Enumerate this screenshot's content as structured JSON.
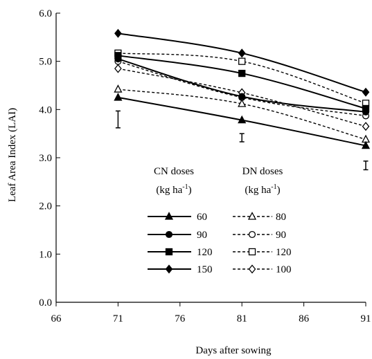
{
  "chart_data": {
    "type": "line",
    "xlabel": "Days after sowing",
    "ylabel": "Leaf Area Index (LAI)",
    "xlim": [
      66,
      91
    ],
    "ylim": [
      0,
      6
    ],
    "xticks": [
      66,
      71,
      76,
      81,
      86,
      91
    ],
    "yticks": [
      "0.0",
      "1.0",
      "2.0",
      "3.0",
      "4.0",
      "5.0",
      "6.0"
    ],
    "grid": false,
    "legend": {
      "placement": "center",
      "cn_title_line1": "CN doses",
      "cn_title_line2": "(kg ha",
      "dn_title_line1": "DN doses",
      "dn_title_line2": "(kg ha",
      "unit_sup": "-1",
      "unit_close": ")"
    },
    "series": [
      {
        "name": "60",
        "group": "CN",
        "marker": "triangle",
        "filled": true,
        "dashed": false,
        "x": [
          71,
          81,
          91
        ],
        "y": [
          4.25,
          3.78,
          3.25
        ]
      },
      {
        "name": "90",
        "group": "CN",
        "marker": "circle",
        "filled": true,
        "dashed": false,
        "x": [
          71,
          81,
          91
        ],
        "y": [
          5.05,
          4.27,
          3.95
        ]
      },
      {
        "name": "120",
        "group": "CN",
        "marker": "square",
        "filled": true,
        "dashed": false,
        "x": [
          71,
          81,
          91
        ],
        "y": [
          5.12,
          4.75,
          4.02
        ]
      },
      {
        "name": "150",
        "group": "CN",
        "marker": "diamond",
        "filled": true,
        "dashed": false,
        "x": [
          71,
          81,
          91
        ],
        "y": [
          5.58,
          5.17,
          4.36
        ]
      },
      {
        "name": "80",
        "group": "DN",
        "marker": "triangle",
        "filled": false,
        "dashed": true,
        "x": [
          71,
          81,
          91
        ],
        "y": [
          4.42,
          4.12,
          3.38
        ]
      },
      {
        "name": "90",
        "group": "DN",
        "marker": "circle",
        "filled": false,
        "dashed": true,
        "x": [
          71,
          81,
          91
        ],
        "y": [
          5.0,
          4.25,
          3.87
        ]
      },
      {
        "name": "120",
        "group": "DN",
        "marker": "square",
        "filled": false,
        "dashed": true,
        "x": [
          71,
          81,
          91
        ],
        "y": [
          5.17,
          5.0,
          4.13
        ]
      },
      {
        "name": "100",
        "group": "DN",
        "marker": "diamond",
        "filled": false,
        "dashed": true,
        "x": [
          71,
          81,
          91
        ],
        "y": [
          4.85,
          4.35,
          3.65
        ]
      }
    ],
    "error_bars": [
      {
        "x": 71,
        "low": 3.62,
        "high": 3.97
      },
      {
        "x": 81,
        "low": 3.33,
        "high": 3.5
      },
      {
        "x": 91,
        "low": 2.75,
        "high": 2.93
      }
    ]
  }
}
